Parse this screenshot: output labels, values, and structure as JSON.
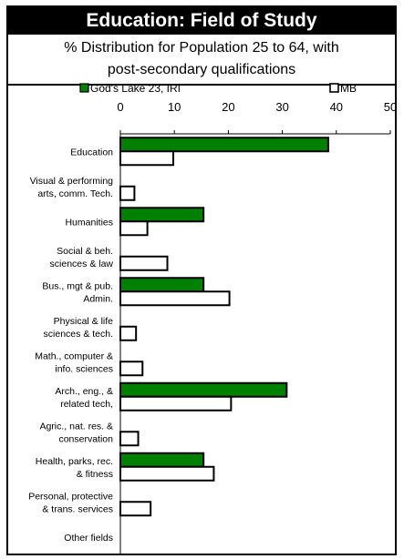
{
  "chart_data": {
    "type": "bar",
    "orientation": "horizontal",
    "title": "Education: Field of Study",
    "subtitle_lines": [
      "% Distribution for Population 25 to 64, with",
      "post-secondary qualifications"
    ],
    "categories": [
      [
        "Education"
      ],
      [
        "Visual & performing",
        "arts, comm. Tech."
      ],
      [
        "Humanities"
      ],
      [
        "Social & beh.",
        "sciences & law"
      ],
      [
        "Bus., mgt & pub.",
        "Admin."
      ],
      [
        "Physical & life",
        "sciences & tech."
      ],
      [
        "Math., computer &",
        "info. sciences"
      ],
      [
        "Arch., eng., &",
        "related tech,"
      ],
      [
        "Agric., nat. res. &",
        "conservation"
      ],
      [
        "Health, parks, rec.",
        "& fitness"
      ],
      [
        "Personal, protective",
        "& trans. services"
      ],
      [
        "Other fields"
      ]
    ],
    "series": [
      {
        "name": "God's Lake 23, IRI",
        "color": "#008000",
        "values": [
          38.5,
          0,
          15.4,
          0,
          15.4,
          0,
          0,
          30.8,
          0,
          15.4,
          0,
          0
        ]
      },
      {
        "name": "MB",
        "color": "#ffffff",
        "values": [
          9.8,
          2.6,
          5,
          8.7,
          20.2,
          2.9,
          4.1,
          20.5,
          3.3,
          17.3,
          5.6,
          0
        ]
      }
    ],
    "xlim": [
      0,
      50
    ],
    "xticks": [
      "0",
      "10",
      "20",
      "30",
      "40",
      "50"
    ],
    "legend_position": "top"
  }
}
